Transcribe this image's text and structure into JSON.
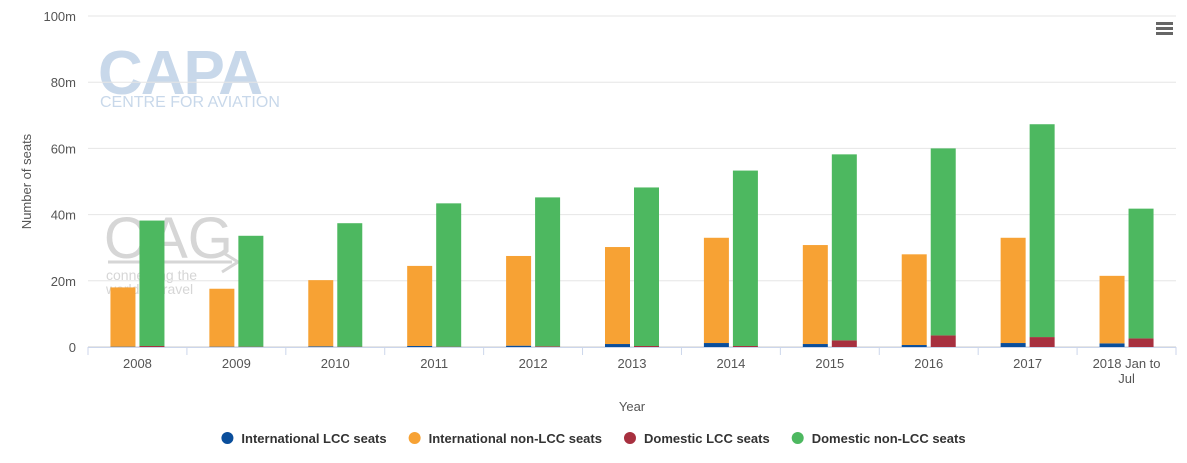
{
  "chart_data": {
    "type": "bar",
    "categories": [
      "2008",
      "2009",
      "2010",
      "2011",
      "2012",
      "2013",
      "2014",
      "2015",
      "2016",
      "2017",
      "2018 Jan to Jul"
    ],
    "category_lines": [
      [
        "2008"
      ],
      [
        "2009"
      ],
      [
        "2010"
      ],
      [
        "2011"
      ],
      [
        "2012"
      ],
      [
        "2013"
      ],
      [
        "2014"
      ],
      [
        "2015"
      ],
      [
        "2016"
      ],
      [
        "2017"
      ],
      [
        "2018 Jan to",
        "Jul"
      ]
    ],
    "stacks": [
      {
        "group": "International",
        "series": [
          {
            "name": "International LCC seats",
            "color": "#0a4e9b",
            "values": [
              0.1,
              0.1,
              0.2,
              0.3,
              0.4,
              0.9,
              1.2,
              0.9,
              0.6,
              1.2,
              1.1
            ]
          },
          {
            "name": "International non-LCC seats",
            "color": "#f7a234",
            "values": [
              17.9,
              17.5,
              20.0,
              24.2,
              27.1,
              29.3,
              31.8,
              29.9,
              27.4,
              31.8,
              20.4
            ]
          }
        ]
      },
      {
        "group": "Domestic",
        "series": [
          {
            "name": "Domestic LCC seats",
            "color": "#a7303f",
            "values": [
              0.3,
              0.1,
              0.1,
              0.1,
              0.2,
              0.3,
              0.3,
              2.0,
              3.5,
              3.0,
              2.6
            ]
          },
          {
            "name": "Domestic non-LCC seats",
            "color": "#4db860",
            "values": [
              37.9,
              33.5,
              37.3,
              43.3,
              45.0,
              47.9,
              53.0,
              56.2,
              56.5,
              64.3,
              39.2
            ]
          }
        ]
      }
    ],
    "legend": [
      {
        "name": "International LCC seats",
        "color": "#0a4e9b"
      },
      {
        "name": "International non-LCC seats",
        "color": "#f7a234"
      },
      {
        "name": "Domestic LCC seats",
        "color": "#a7303f"
      },
      {
        "name": "Domestic non-LCC seats",
        "color": "#4db860"
      }
    ],
    "xlabel": "Year",
    "ylabel": "Number of seats",
    "ylim": [
      0,
      100
    ],
    "yticks": [
      0,
      20,
      40,
      60,
      80,
      100
    ],
    "ytick_labels": [
      "0",
      "20m",
      "40m",
      "60m",
      "80m",
      "100m"
    ],
    "grid": true,
    "legend_position": "bottom-center"
  },
  "watermarks": {
    "capa": "CAPA",
    "capa_sub": "CENTRE FOR AVIATION",
    "oag": "OAG",
    "oag_sub_1": "connecting the",
    "oag_sub_2": "world of travel"
  },
  "menu_icon": "hamburger-menu-icon"
}
